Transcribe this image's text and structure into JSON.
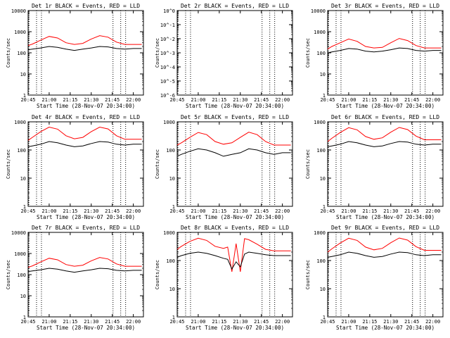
{
  "figure": {
    "x_ticks": [
      "20:45",
      "21:00",
      "21:15",
      "21:30",
      "21:45",
      "22:00"
    ],
    "xlabel": "Start Time (28-Nov-07 20:34:00)",
    "ylabel": "Counts/sec",
    "series_colors": {
      "events": "#000000",
      "lld": "#ff0000"
    },
    "vlines_minutes": [
      45.5,
      51,
      54.5
    ]
  },
  "chart_data": [
    {
      "type": "line",
      "title": "Det 1r BLACK = Events, RED = LLD",
      "xlim": [
        20.75,
        22.12
      ],
      "ylim": [
        1,
        10000
      ],
      "yscale": "log",
      "ytick_labels": [
        "1",
        "10",
        "100",
        "1000",
        "10000"
      ],
      "x": [
        20.73,
        20.8,
        20.9,
        21.0,
        21.1,
        21.2,
        21.3,
        21.4,
        21.5,
        21.6,
        21.7,
        21.8,
        21.9,
        22.0,
        22.1
      ],
      "series": [
        {
          "values": [
            220,
            260,
            400,
            600,
            500,
            300,
            250,
            280,
            450,
            650,
            550,
            320,
            250,
            250,
            250
          ]
        },
        {
          "values": [
            140,
            150,
            170,
            200,
            180,
            150,
            130,
            150,
            170,
            200,
            190,
            160,
            150,
            160,
            160
          ]
        }
      ]
    },
    {
      "type": "line",
      "title": "Det 2r BLACK = Events, RED = LLD",
      "xlim": [
        20.75,
        22.12
      ],
      "ylim": [
        1e-06,
        1.0
      ],
      "yscale": "log",
      "ytick_labels": [
        "10^-6",
        "10^-5",
        "10^-4",
        "10^-3",
        "10^-2",
        "10^-1",
        "10^0"
      ],
      "series": []
    },
    {
      "type": "line",
      "title": "Det 3r BLACK = Events, RED = LLD",
      "xlim": [
        20.75,
        22.12
      ],
      "ylim": [
        1,
        10000
      ],
      "yscale": "log",
      "ytick_labels": [
        "1",
        "10",
        "100",
        "1000",
        "10000"
      ],
      "x": [
        20.73,
        20.8,
        20.9,
        21.0,
        21.1,
        21.2,
        21.3,
        21.4,
        21.5,
        21.6,
        21.7,
        21.8,
        21.9,
        22.0,
        22.1
      ],
      "series": [
        {
          "values": [
            150,
            200,
            300,
            450,
            350,
            200,
            170,
            180,
            300,
            480,
            380,
            220,
            170,
            170,
            170
          ]
        },
        {
          "values": [
            100,
            110,
            130,
            160,
            150,
            120,
            110,
            120,
            140,
            170,
            160,
            130,
            120,
            130,
            130
          ]
        }
      ]
    },
    {
      "type": "line",
      "title": "Det 4r BLACK = Events, RED = LLD",
      "xlim": [
        20.75,
        22.12
      ],
      "ylim": [
        1,
        1000
      ],
      "yscale": "log",
      "ytick_labels": [
        "1",
        "10",
        "100",
        "1000"
      ],
      "x": [
        20.73,
        20.8,
        20.9,
        21.0,
        21.1,
        21.2,
        21.3,
        21.4,
        21.5,
        21.6,
        21.7,
        21.8,
        21.9,
        22.0,
        22.1
      ],
      "series": [
        {
          "values": [
            220,
            280,
            450,
            650,
            550,
            320,
            250,
            280,
            450,
            650,
            560,
            320,
            240,
            240,
            240
          ]
        },
        {
          "values": [
            130,
            140,
            160,
            200,
            180,
            150,
            130,
            140,
            170,
            200,
            190,
            160,
            150,
            160,
            160
          ]
        }
      ]
    },
    {
      "type": "line",
      "title": "Det 5r BLACK = Events, RED = LLD",
      "xlim": [
        20.75,
        22.12
      ],
      "ylim": [
        1,
        1000
      ],
      "yscale": "log",
      "ytick_labels": [
        "1",
        "10",
        "100",
        "1000"
      ],
      "x": [
        20.73,
        20.8,
        20.9,
        21.0,
        21.1,
        21.2,
        21.3,
        21.4,
        21.5,
        21.6,
        21.7,
        21.8,
        21.9,
        22.0,
        22.1
      ],
      "series": [
        {
          "values": [
            150,
            180,
            280,
            420,
            350,
            200,
            160,
            180,
            280,
            430,
            350,
            200,
            150,
            150,
            150
          ]
        },
        {
          "values": [
            60,
            70,
            90,
            110,
            100,
            80,
            60,
            70,
            80,
            110,
            100,
            80,
            70,
            80,
            80
          ]
        }
      ]
    },
    {
      "type": "line",
      "title": "Det 6r BLACK = Events, RED = LLD",
      "xlim": [
        20.75,
        22.12
      ],
      "ylim": [
        1,
        1000
      ],
      "yscale": "log",
      "ytick_labels": [
        "1",
        "10",
        "100",
        "1000"
      ],
      "x": [
        20.73,
        20.8,
        20.9,
        21.0,
        21.1,
        21.2,
        21.3,
        21.4,
        21.5,
        21.6,
        21.7,
        21.8,
        21.9,
        22.0,
        22.1
      ],
      "series": [
        {
          "values": [
            200,
            260,
            420,
            620,
            520,
            300,
            240,
            270,
            430,
            630,
            530,
            310,
            230,
            230,
            230
          ]
        },
        {
          "values": [
            130,
            140,
            160,
            200,
            180,
            150,
            130,
            140,
            170,
            200,
            190,
            160,
            150,
            160,
            160
          ]
        }
      ]
    },
    {
      "type": "line",
      "title": "Det 7r BLACK = Events, RED = LLD",
      "xlim": [
        20.75,
        22.12
      ],
      "ylim": [
        1,
        10000
      ],
      "yscale": "log",
      "ytick_labels": [
        "1",
        "10",
        "100",
        "1000",
        "10000"
      ],
      "x": [
        20.73,
        20.8,
        20.9,
        21.0,
        21.1,
        21.2,
        21.3,
        21.4,
        21.5,
        21.6,
        21.7,
        21.8,
        21.9,
        22.0,
        22.1
      ],
      "series": [
        {
          "values": [
            220,
            260,
            400,
            600,
            500,
            300,
            250,
            280,
            450,
            650,
            550,
            320,
            250,
            250,
            250
          ]
        },
        {
          "values": [
            140,
            150,
            170,
            200,
            180,
            150,
            130,
            150,
            170,
            200,
            190,
            160,
            150,
            160,
            160
          ]
        }
      ]
    },
    {
      "type": "line",
      "title": "Det 8r BLACK = Events, RED = LLD",
      "xlim": [
        20.75,
        22.12
      ],
      "ylim": [
        1,
        1000
      ],
      "yscale": "log",
      "ytick_labels": [
        "1",
        "10",
        "100",
        "1000"
      ],
      "x": [
        20.73,
        20.8,
        20.9,
        21.0,
        21.1,
        21.2,
        21.3,
        21.35,
        21.4,
        21.45,
        21.5,
        21.55,
        21.6,
        21.7,
        21.8,
        21.9,
        22.0,
        22.1
      ],
      "series": [
        {
          "values": [
            250,
            320,
            480,
            620,
            520,
            320,
            270,
            300,
            40,
            400,
            40,
            600,
            550,
            380,
            250,
            220,
            220,
            220
          ]
        },
        {
          "values": [
            130,
            150,
            180,
            200,
            180,
            150,
            120,
            110,
            50,
            90,
            60,
            170,
            200,
            180,
            160,
            150,
            150,
            150
          ]
        }
      ]
    },
    {
      "type": "line",
      "title": "Det 9r BLACK = Events, RED = LLD",
      "xlim": [
        20.75,
        22.12
      ],
      "ylim": [
        1,
        1000
      ],
      "yscale": "log",
      "ytick_labels": [
        "1",
        "10",
        "100",
        "1000"
      ],
      "x": [
        20.73,
        20.8,
        20.9,
        21.0,
        21.1,
        21.2,
        21.3,
        21.4,
        21.5,
        21.6,
        21.7,
        21.8,
        21.9,
        22.0,
        22.1
      ],
      "series": [
        {
          "values": [
            200,
            260,
            420,
            620,
            520,
            300,
            240,
            270,
            430,
            630,
            530,
            310,
            230,
            230,
            230
          ]
        },
        {
          "values": [
            130,
            140,
            160,
            200,
            180,
            150,
            130,
            140,
            170,
            200,
            190,
            160,
            150,
            160,
            160
          ]
        }
      ]
    }
  ]
}
